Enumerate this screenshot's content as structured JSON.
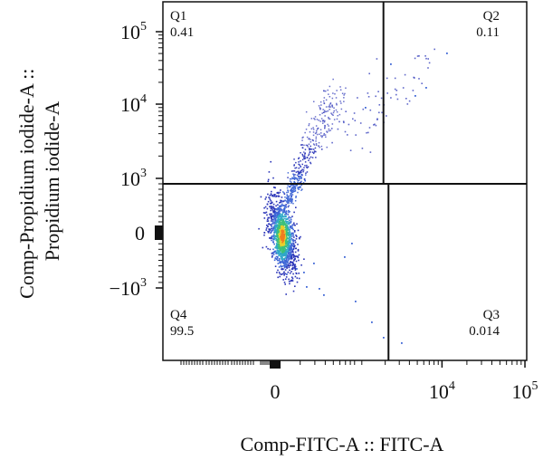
{
  "chart_data": {
    "type": "scatter",
    "subtype": "flow-cytometry-density-dot-plot",
    "xlabel": "Comp-FITC-A :: FITC-A",
    "ylabel_lines": [
      "Comp-Propidium iodide-A ::",
      "Propidium iodide-A"
    ],
    "x_scale": "biexponential",
    "y_scale": "biexponential",
    "x_ticks": [
      {
        "value": 0,
        "base": "0",
        "exp": ""
      },
      {
        "value": 10000,
        "base": "10",
        "exp": "4"
      },
      {
        "value": 100000,
        "base": "10",
        "exp": "5"
      }
    ],
    "y_ticks": [
      {
        "value": 100000,
        "base": "10",
        "exp": "5"
      },
      {
        "value": 10000,
        "base": "10",
        "exp": "4"
      },
      {
        "value": 1000,
        "base": "10",
        "exp": "3"
      },
      {
        "value": 0,
        "base": "0",
        "exp": ""
      },
      {
        "value": -1000,
        "base": "−10",
        "exp": "3"
      }
    ],
    "quadrant_gates": {
      "horizontal_y": 900,
      "vertical_x_upper": 1900,
      "vertical_x_lower": 2200
    },
    "quadrants": [
      {
        "name": "Q1",
        "value": "0.41",
        "position": "top-left"
      },
      {
        "name": "Q2",
        "value": "0.11",
        "position": "top-right"
      },
      {
        "name": "Q3",
        "value": "0.014",
        "position": "bottom-right"
      },
      {
        "name": "Q4",
        "value": "99.5",
        "position": "bottom-left"
      }
    ],
    "population": {
      "center_x": 20,
      "center_y": -50,
      "events_shown": "dense"
    },
    "density_colors": [
      "#2b35b8",
      "#3f67d6",
      "#2fa8c8",
      "#3cc07a",
      "#e6d02c",
      "#f07d1f"
    ],
    "grid": false,
    "legend": "none"
  }
}
